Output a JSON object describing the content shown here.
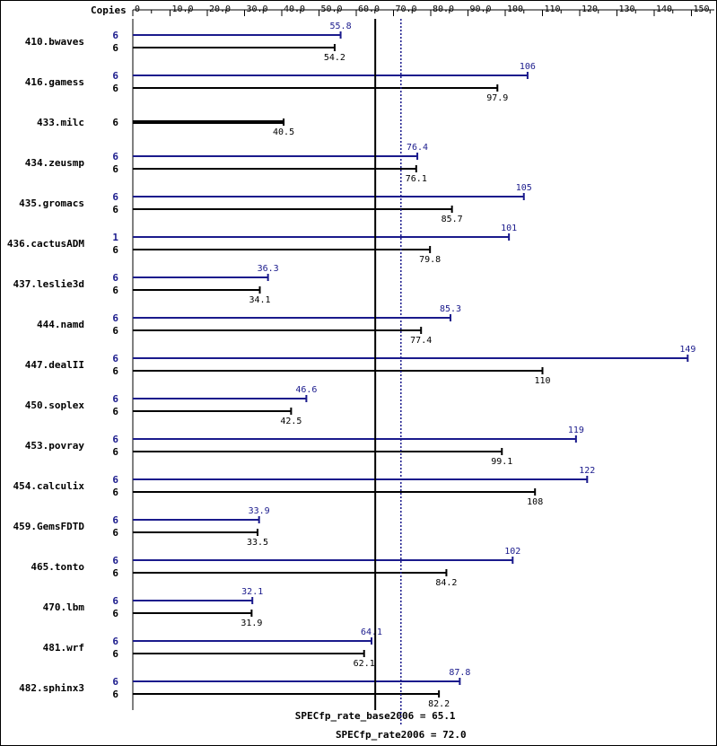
{
  "chart_data": {
    "type": "bar",
    "header_label": "Copies",
    "x_ticks": [
      "0",
      "10.0",
      "20.0",
      "30.0",
      "40.0",
      "50.0",
      "60.0",
      "70.0",
      "80.0",
      "90.0",
      "100",
      "110",
      "120",
      "130",
      "140",
      "150"
    ],
    "xlim": [
      0,
      155
    ],
    "colors": {
      "base": "#000000",
      "peak": "#1a1a8c"
    },
    "benchmarks": [
      {
        "name": "410.bwaves",
        "peak": {
          "copies": "6",
          "value": 55.8,
          "label": "55.8"
        },
        "base": {
          "copies": "6",
          "value": 54.2,
          "label": "54.2"
        }
      },
      {
        "name": "416.gamess",
        "peak": {
          "copies": "6",
          "value": 106,
          "label": "106"
        },
        "base": {
          "copies": "6",
          "value": 97.9,
          "label": "97.9"
        }
      },
      {
        "name": "433.milc",
        "peak": null,
        "base": {
          "copies": "6",
          "value": 40.5,
          "label": "40.5"
        }
      },
      {
        "name": "434.zeusmp",
        "peak": {
          "copies": "6",
          "value": 76.4,
          "label": "76.4"
        },
        "base": {
          "copies": "6",
          "value": 76.1,
          "label": "76.1"
        }
      },
      {
        "name": "435.gromacs",
        "peak": {
          "copies": "6",
          "value": 105,
          "label": "105"
        },
        "base": {
          "copies": "6",
          "value": 85.7,
          "label": "85.7"
        }
      },
      {
        "name": "436.cactusADM",
        "peak": {
          "copies": "1",
          "value": 101,
          "label": "101"
        },
        "base": {
          "copies": "6",
          "value": 79.8,
          "label": "79.8"
        }
      },
      {
        "name": "437.leslie3d",
        "peak": {
          "copies": "6",
          "value": 36.3,
          "label": "36.3"
        },
        "base": {
          "copies": "6",
          "value": 34.1,
          "label": "34.1"
        }
      },
      {
        "name": "444.namd",
        "peak": {
          "copies": "6",
          "value": 85.3,
          "label": "85.3"
        },
        "base": {
          "copies": "6",
          "value": 77.4,
          "label": "77.4"
        }
      },
      {
        "name": "447.dealII",
        "peak": {
          "copies": "6",
          "value": 149,
          "label": "149"
        },
        "base": {
          "copies": "6",
          "value": 110,
          "label": "110"
        }
      },
      {
        "name": "450.soplex",
        "peak": {
          "copies": "6",
          "value": 46.6,
          "label": "46.6"
        },
        "base": {
          "copies": "6",
          "value": 42.5,
          "label": "42.5"
        }
      },
      {
        "name": "453.povray",
        "peak": {
          "copies": "6",
          "value": 119,
          "label": "119"
        },
        "base": {
          "copies": "6",
          "value": 99.1,
          "label": "99.1"
        }
      },
      {
        "name": "454.calculix",
        "peak": {
          "copies": "6",
          "value": 122,
          "label": "122"
        },
        "base": {
          "copies": "6",
          "value": 108,
          "label": "108"
        }
      },
      {
        "name": "459.GemsFDTD",
        "peak": {
          "copies": "6",
          "value": 33.9,
          "label": "33.9"
        },
        "base": {
          "copies": "6",
          "value": 33.5,
          "label": "33.5"
        }
      },
      {
        "name": "465.tonto",
        "peak": {
          "copies": "6",
          "value": 102,
          "label": "102"
        },
        "base": {
          "copies": "6",
          "value": 84.2,
          "label": "84.2"
        }
      },
      {
        "name": "470.lbm",
        "peak": {
          "copies": "6",
          "value": 32.1,
          "label": "32.1"
        },
        "base": {
          "copies": "6",
          "value": 31.9,
          "label": "31.9"
        }
      },
      {
        "name": "481.wrf",
        "peak": {
          "copies": "6",
          "value": 64.1,
          "label": "64.1"
        },
        "base": {
          "copies": "6",
          "value": 62.1,
          "label": "62.1"
        }
      },
      {
        "name": "482.sphinx3",
        "peak": {
          "copies": "6",
          "value": 87.8,
          "label": "87.8"
        },
        "base": {
          "copies": "6",
          "value": 82.2,
          "label": "82.2"
        }
      }
    ],
    "reference_lines": [
      {
        "kind": "base",
        "label": "SPECfp_rate_base2006 = 65.1",
        "value": 65.1,
        "style": "solid"
      },
      {
        "kind": "peak",
        "label": "SPECfp_rate2006 = 72.0",
        "value": 72.0,
        "style": "dotted"
      }
    ]
  }
}
